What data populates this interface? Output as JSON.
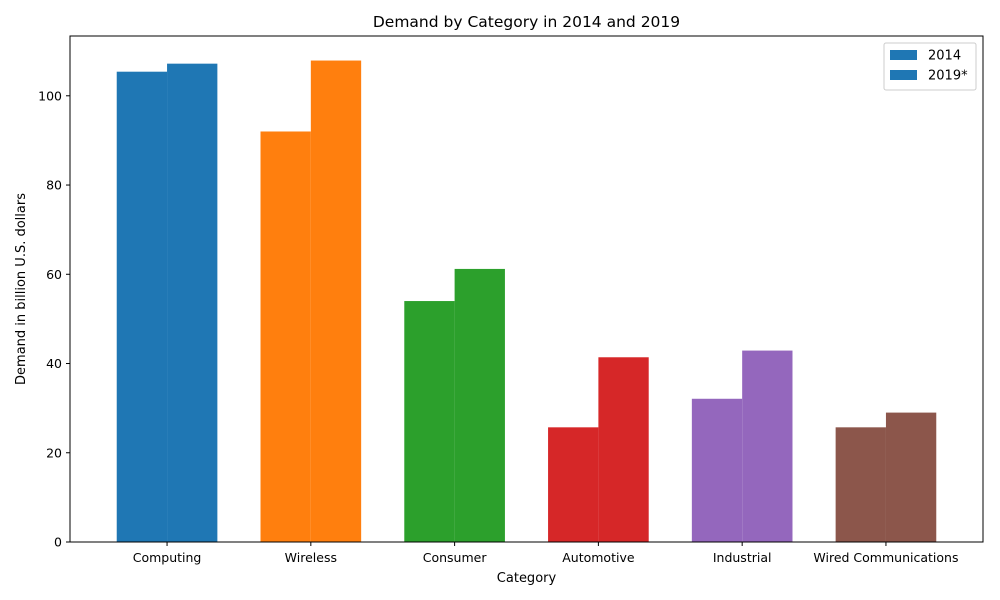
{
  "chart_data": {
    "type": "bar",
    "title": "Demand by Category in 2014 and 2019",
    "xlabel": "Category",
    "ylabel": "Demand in billion U.S. dollars",
    "categories": [
      "Computing",
      "Wireless",
      "Consumer",
      "Automotive",
      "Industrial",
      "Wired Communications"
    ],
    "series": [
      {
        "name": "2014",
        "values": [
          105.4,
          92.0,
          54.0,
          25.7,
          32.1,
          25.7
        ]
      },
      {
        "name": "2019*",
        "values": [
          107.2,
          107.9,
          61.2,
          41.4,
          42.9,
          29.0
        ]
      }
    ],
    "category_colors": [
      "#1f77b4",
      "#ff7f0e",
      "#2ca02c",
      "#d62728",
      "#9467bd",
      "#8c564b"
    ],
    "legend_color": "#1f77b4",
    "ylim": [
      0,
      113.4
    ],
    "yticks": [
      0,
      20,
      40,
      60,
      80,
      100
    ],
    "grid": false,
    "legend_position": "top-right"
  }
}
